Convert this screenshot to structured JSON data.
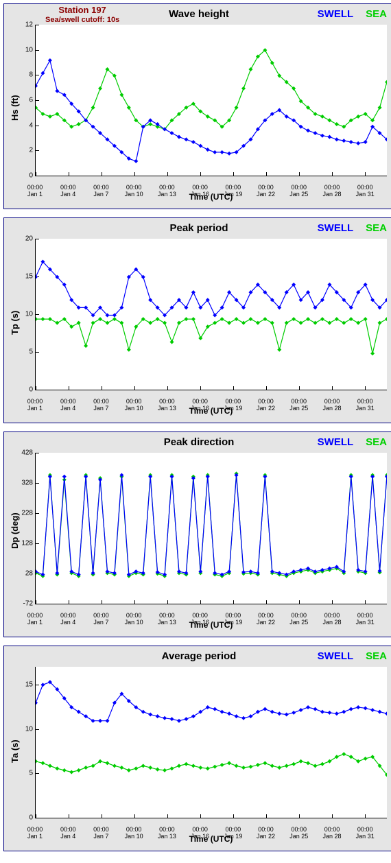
{
  "station": {
    "name": "Station 197",
    "cutoff": "Sea/swell cutoff: 10s",
    "color": "#8b0000"
  },
  "legend": {
    "swell": {
      "label": "SWELL",
      "color": "#0000ff"
    },
    "sea": {
      "label": "SEA",
      "color": "#00d000"
    }
  },
  "colors": {
    "panel_bg": "#e5e5e5",
    "plot_bg": "#ffffff",
    "panel_border": "#000080",
    "axis": "#000000",
    "swell": "#0000ff",
    "sea": "#00cc00"
  },
  "x_axis": {
    "label": "Time (UTC)",
    "ticks": [
      {
        "pos": 0.0,
        "line1": "00:00",
        "line2": "Jan 1"
      },
      {
        "pos": 0.094,
        "line1": "00:00",
        "line2": "Jan 4"
      },
      {
        "pos": 0.188,
        "line1": "00:00",
        "line2": "Jan 7"
      },
      {
        "pos": 0.281,
        "line1": "00:00",
        "line2": "Jan 10"
      },
      {
        "pos": 0.375,
        "line1": "00:00",
        "line2": "Jan 13"
      },
      {
        "pos": 0.469,
        "line1": "00:00",
        "line2": "Jan 16"
      },
      {
        "pos": 0.563,
        "line1": "00:00",
        "line2": "Jan 19"
      },
      {
        "pos": 0.656,
        "line1": "00:00",
        "line2": "Jan 22"
      },
      {
        "pos": 0.75,
        "line1": "00:00",
        "line2": "Jan 25"
      },
      {
        "pos": 0.844,
        "line1": "00:00",
        "line2": "Jan 28"
      },
      {
        "pos": 0.938,
        "line1": "00:00",
        "line2": "Jan 31"
      }
    ]
  },
  "panels": [
    {
      "title": "Wave height",
      "ylabel": "Hs (ft)",
      "ymin": 0,
      "ymax": 12,
      "ystep": 2,
      "show_station": true,
      "swell": [
        7.2,
        8.2,
        9.2,
        6.8,
        6.5,
        5.8,
        5.2,
        4.5,
        4.0,
        3.5,
        3.0,
        2.5,
        2.0,
        1.5,
        1.3,
        4.0,
        4.5,
        4.2,
        3.8,
        3.5,
        3.2,
        3.0,
        2.8,
        2.5,
        2.2,
        2.0,
        2.0,
        1.9,
        2.0,
        2.5,
        3.0,
        3.8,
        4.5,
        5.0,
        5.3,
        4.8,
        4.5,
        4.0,
        3.7,
        3.5,
        3.3,
        3.2,
        3.0,
        2.9,
        2.8,
        2.7,
        2.8,
        4.0,
        3.5,
        3.0
      ],
      "sea": [
        5.5,
        5.0,
        4.8,
        5.0,
        4.5,
        4.0,
        4.2,
        4.5,
        5.5,
        7.0,
        8.5,
        8.0,
        6.5,
        5.5,
        4.5,
        4.0,
        4.2,
        4.0,
        3.8,
        4.5,
        5.0,
        5.5,
        5.8,
        5.2,
        4.8,
        4.5,
        4.0,
        4.5,
        5.5,
        7.0,
        8.5,
        9.5,
        10.0,
        9.0,
        8.0,
        7.5,
        7.0,
        6.0,
        5.5,
        5.0,
        4.8,
        4.5,
        4.2,
        4.0,
        4.5,
        4.8,
        5.0,
        4.5,
        5.5,
        7.5
      ]
    },
    {
      "title": "Peak period",
      "ylabel": "Tp (s)",
      "ymin": 0,
      "ymax": 20,
      "ystep": 5,
      "swell": [
        15,
        17,
        16,
        15,
        14,
        12,
        11,
        11,
        10,
        11,
        10,
        10,
        11,
        15,
        16,
        15,
        12,
        11,
        10,
        11,
        12,
        11,
        13,
        11,
        12,
        10,
        11,
        13,
        12,
        11,
        13,
        14,
        13,
        12,
        11,
        13,
        14,
        12,
        13,
        11,
        12,
        14,
        13,
        12,
        11,
        13,
        14,
        12,
        11,
        12
      ],
      "sea": [
        9.5,
        9.5,
        9.5,
        9.0,
        9.5,
        8.5,
        9.0,
        6.0,
        9.0,
        9.5,
        9.0,
        9.5,
        9.0,
        5.5,
        8.5,
        9.5,
        9.0,
        9.5,
        9.0,
        6.5,
        9.0,
        9.5,
        9.5,
        7.0,
        8.5,
        9.0,
        9.5,
        9.0,
        9.5,
        9.0,
        9.5,
        9.0,
        9.5,
        9.0,
        5.5,
        9.0,
        9.5,
        9.0,
        9.5,
        9.0,
        9.5,
        9.0,
        9.5,
        9.0,
        9.5,
        9.0,
        9.5,
        5.0,
        9.0,
        9.5
      ]
    },
    {
      "title": "Peak direction",
      "ylabel": "Dp (deg)",
      "ymin": -72,
      "ymax": 428,
      "ystep": 100,
      "ystart": -72,
      "swell": [
        40,
        30,
        350,
        35,
        350,
        40,
        30,
        350,
        35,
        340,
        40,
        35,
        355,
        30,
        40,
        35,
        350,
        38,
        30,
        350,
        40,
        35,
        345,
        40,
        350,
        35,
        30,
        40,
        355,
        38,
        40,
        35,
        350,
        40,
        35,
        30,
        40,
        45,
        50,
        40,
        45,
        50,
        55,
        40,
        350,
        45,
        40,
        350,
        42,
        350
      ],
      "sea": [
        35,
        25,
        355,
        30,
        340,
        35,
        25,
        355,
        30,
        345,
        35,
        30,
        350,
        25,
        35,
        30,
        355,
        33,
        25,
        355,
        35,
        30,
        350,
        35,
        355,
        30,
        25,
        35,
        360,
        33,
        35,
        30,
        355,
        35,
        30,
        25,
        35,
        40,
        45,
        35,
        40,
        45,
        50,
        35,
        355,
        40,
        35,
        355,
        37,
        355
      ]
    },
    {
      "title": "Average period",
      "ylabel": "Ta (s)",
      "ymin": 0,
      "ymax": 17,
      "ystep": 5,
      "swell": [
        13,
        15,
        15.3,
        14.5,
        13.5,
        12.5,
        12,
        11.5,
        11,
        11,
        11,
        13,
        14,
        13.2,
        12.5,
        12,
        11.7,
        11.5,
        11.3,
        11.2,
        11,
        11.2,
        11.5,
        12,
        12.5,
        12.3,
        12,
        11.8,
        11.5,
        11.3,
        11.5,
        12,
        12.3,
        12,
        11.8,
        11.7,
        11.9,
        12.2,
        12.5,
        12.3,
        12,
        11.9,
        11.8,
        12,
        12.3,
        12.5,
        12.4,
        12.2,
        12,
        11.8
      ],
      "sea": [
        6.5,
        6.3,
        6.0,
        5.7,
        5.5,
        5.3,
        5.5,
        5.8,
        6.0,
        6.5,
        6.3,
        6.0,
        5.8,
        5.5,
        5.7,
        6.0,
        5.8,
        5.6,
        5.5,
        5.7,
        6.0,
        6.2,
        6.0,
        5.8,
        5.7,
        5.9,
        6.1,
        6.3,
        6.0,
        5.8,
        5.9,
        6.1,
        6.3,
        6.0,
        5.8,
        6.0,
        6.2,
        6.5,
        6.3,
        6.0,
        6.2,
        6.5,
        7.0,
        7.3,
        7.0,
        6.5,
        6.8,
        7.0,
        6.0,
        5.0
      ]
    }
  ]
}
